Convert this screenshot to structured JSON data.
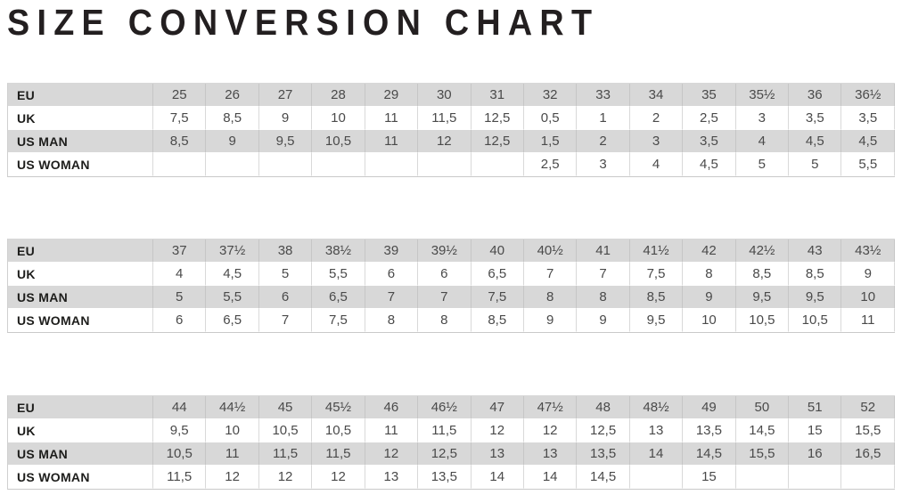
{
  "title": "SIZE CONVERSION CHART",
  "colors": {
    "row_shade": "#d8d8d8",
    "cell_border": "#c6c6c6",
    "number_text": "#4a4a4a",
    "label_text": "#1d1d1b",
    "title_text": "#231f20"
  },
  "tables": [
    {
      "rows": [
        {
          "label": "EU",
          "values": [
            "25",
            "26",
            "27",
            "28",
            "29",
            "30",
            "31",
            "32",
            "33",
            "34",
            "35",
            "35½",
            "36",
            "36½"
          ]
        },
        {
          "label": "UK",
          "values": [
            "7,5",
            "8,5",
            "9",
            "10",
            "11",
            "11,5",
            "12,5",
            "0,5",
            "1",
            "2",
            "2,5",
            "3",
            "3,5",
            "3,5"
          ]
        },
        {
          "label": "US MAN",
          "values": [
            "8,5",
            "9",
            "9,5",
            "10,5",
            "11",
            "12",
            "12,5",
            "1,5",
            "2",
            "3",
            "3,5",
            "4",
            "4,5",
            "4,5"
          ]
        },
        {
          "label": "US WOMAN",
          "values": [
            "",
            "",
            "",
            "",
            "",
            "",
            "",
            "2,5",
            "3",
            "4",
            "4,5",
            "5",
            "5",
            "5,5"
          ]
        }
      ]
    },
    {
      "rows": [
        {
          "label": "EU",
          "values": [
            "37",
            "37½",
            "38",
            "38½",
            "39",
            "39½",
            "40",
            "40½",
            "41",
            "41½",
            "42",
            "42½",
            "43",
            "43½"
          ]
        },
        {
          "label": "UK",
          "values": [
            "4",
            "4,5",
            "5",
            "5,5",
            "6",
            "6",
            "6,5",
            "7",
            "7",
            "7,5",
            "8",
            "8,5",
            "8,5",
            "9"
          ]
        },
        {
          "label": "US MAN",
          "values": [
            "5",
            "5,5",
            "6",
            "6,5",
            "7",
            "7",
            "7,5",
            "8",
            "8",
            "8,5",
            "9",
            "9,5",
            "9,5",
            "10"
          ]
        },
        {
          "label": "US WOMAN",
          "values": [
            "6",
            "6,5",
            "7",
            "7,5",
            "8",
            "8",
            "8,5",
            "9",
            "9",
            "9,5",
            "10",
            "10,5",
            "10,5",
            "11"
          ]
        }
      ]
    },
    {
      "rows": [
        {
          "label": "EU",
          "values": [
            "44",
            "44½",
            "45",
            "45½",
            "46",
            "46½",
            "47",
            "47½",
            "48",
            "48½",
            "49",
            "50",
            "51",
            "52"
          ]
        },
        {
          "label": "UK",
          "values": [
            "9,5",
            "10",
            "10,5",
            "10,5",
            "11",
            "11,5",
            "12",
            "12",
            "12,5",
            "13",
            "13,5",
            "14,5",
            "15",
            "15,5"
          ]
        },
        {
          "label": "US MAN",
          "values": [
            "10,5",
            "11",
            "11,5",
            "11,5",
            "12",
            "12,5",
            "13",
            "13",
            "13,5",
            "14",
            "14,5",
            "15,5",
            "16",
            "16,5"
          ]
        },
        {
          "label": "US WOMAN",
          "values": [
            "11,5",
            "12",
            "12",
            "12",
            "13",
            "13,5",
            "14",
            "14",
            "14,5",
            "",
            "15",
            "",
            "",
            ""
          ]
        }
      ]
    }
  ]
}
